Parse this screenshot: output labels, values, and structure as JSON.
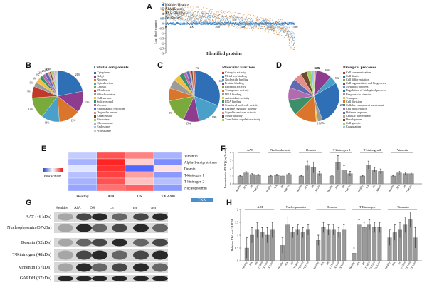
{
  "panels": {
    "A": "A",
    "B": "B",
    "C": "C",
    "D": "D",
    "E": "E",
    "F": "F",
    "G": "G",
    "H": "H"
  },
  "A": {
    "ylabel": "Log₂ (fold change)",
    "xlabel": "Identified proteins",
    "legend": [
      {
        "text": "Healthy/Healthy",
        "color": "#1f6fbf"
      },
      {
        "text": "AIA/Healthy",
        "color": "#e2852e"
      },
      {
        "text": "TXR/Healthy",
        "color": "#7f7f7f"
      },
      {
        "text": "DS/Healthy",
        "color": "#6bb0d8"
      }
    ],
    "yticks": [
      "2",
      "1.5",
      "1",
      "0.5",
      "0",
      "-0.5",
      "-1",
      "-1.5",
      "-2",
      "-2.5",
      "-3"
    ],
    "xticks": [
      "0",
      "100",
      "200",
      "300",
      "400",
      "500"
    ]
  },
  "B": {
    "title": "Cellular components",
    "items": [
      "Cytoplasm",
      "Golgi",
      "Nucleus",
      "Cytoskeleton",
      "Cytosol",
      "Membrane",
      "Mitochondrion",
      "Cell surface",
      "Spliceosomal",
      "Vacuole",
      "Endoplasmic reticulum",
      "Organelle lumen",
      "Extracellular",
      "Ribosome",
      "Chromosome",
      "Endosome",
      "Proteasome"
    ],
    "pcts": [
      "21%",
      "13%",
      "13%",
      "11%",
      "13%",
      "7%",
      "3%",
      "3%",
      "2%",
      "2%",
      "2%",
      "1%",
      "1%",
      "1%"
    ]
  },
  "C": {
    "title": "Molecular functions",
    "items": [
      "Catalytic activity",
      "Metal ion binding",
      "Nucleotide binding",
      "Protein binding",
      "Receptor activity",
      "Transporter activity",
      "DNA binding",
      "Antioxidant activity",
      "RNA binding",
      "Structural molecule activity",
      "Enzyme regulator activity",
      "Signal transducer activity",
      "Motor activity",
      "Translation regulator activity"
    ],
    "pcts": [
      "1%",
      "16%",
      "10%",
      "15%",
      "8%"
    ]
  },
  "D": {
    "title": "Biological processes",
    "items": [
      "Cell communication",
      "Cell death",
      "Cell differentiation",
      "Cell organization and biogenesis",
      "Metabolic process",
      "Regulation of biological process",
      "Response to stimulus",
      "Transport",
      "Cell division",
      "Cellular component movement",
      "Cell proliferation",
      "Defense response",
      "Cellular homeostasis",
      "Development",
      "Cell growth",
      "Coagulation"
    ],
    "pcts": [
      "0.4%",
      "0.1%",
      "1%",
      "10%",
      "5%",
      "28%",
      "3%",
      "1%"
    ]
  },
  "E": {
    "columns": [
      "Healthy",
      "AIA",
      "DS",
      "TXR200"
    ],
    "rows": [
      "Vimentin",
      "Alpha-1-antiproteinase",
      "Desmin",
      "T-kininogen 1",
      "T-kininogen 2",
      "Nucleophosmin"
    ],
    "key_label": "Row Z-Score",
    "values": [
      [
        -0.4,
        1.1,
        0.8,
        -0.6
      ],
      [
        -0.6,
        1.4,
        0.3,
        -0.9
      ],
      [
        -0.2,
        1.3,
        -1.2,
        0.2
      ],
      [
        -0.5,
        1.2,
        0.6,
        -0.8
      ],
      [
        -0.6,
        1.1,
        0.4,
        -0.5
      ],
      [
        -0.7,
        0.9,
        1.0,
        -0.8
      ]
    ]
  },
  "F": {
    "ylabel": "Expression in iTRAQ (log2 ratio)",
    "groups": [
      "AAT",
      "Nucleophosmin",
      "Desmin",
      "T-kininogen 1",
      "T-kininogen 2",
      "Vimentin"
    ],
    "bar_labels": [
      "Healthy",
      "AIA",
      "DS",
      "TXR200"
    ],
    "yticks": [
      "0",
      "1",
      "2",
      "3",
      "4"
    ],
    "ylim": [
      0,
      4
    ],
    "values": [
      [
        1.0,
        1.4,
        1.2,
        1.1
      ],
      [
        1.0,
        1.1,
        1.0,
        1.2
      ],
      [
        1.0,
        2.3,
        2.1,
        1.3
      ],
      [
        1.0,
        2.7,
        1.8,
        1.3
      ],
      [
        1.0,
        2.4,
        1.8,
        1.6
      ],
      [
        1.0,
        1.4,
        1.3,
        1.3
      ]
    ],
    "errors": [
      [
        0.05,
        0.15,
        0.1,
        0.1
      ],
      [
        0.05,
        0.1,
        0.1,
        0.1
      ],
      [
        0.05,
        0.6,
        0.7,
        0.3
      ],
      [
        0.05,
        0.9,
        0.5,
        0.3
      ],
      [
        0.05,
        0.5,
        0.3,
        0.3
      ],
      [
        0.05,
        0.2,
        0.2,
        0.2
      ]
    ]
  },
  "G": {
    "lanes": [
      "Healthy",
      "AIA",
      "DS",
      "50",
      "100",
      "200"
    ],
    "txr_label": "TXR",
    "proteins": [
      "AAT (46 kDa)",
      "Nucleophosmin (37kDa)",
      "Desmin (52kDa)",
      "T-Kininogen (48kDa)",
      "Vimentin (57kDa)",
      "GAPDH (37kDa)"
    ]
  },
  "H": {
    "ylabel": "Relative IDV wrt GAPDH",
    "groups": [
      "AAT",
      "Nucleophosmin",
      "Desmin",
      "T-Kininogen",
      "Vimentin"
    ],
    "bar_labels": [
      "Healthy",
      "AIA",
      "DS",
      "TXR50",
      "TXR100",
      "TXR200"
    ],
    "yticks": [
      "0",
      "0.5",
      "1",
      "1.5",
      "2"
    ],
    "ylim": [
      0,
      2
    ],
    "values": [
      [
        0.5,
        1.0,
        1.2,
        1.1,
        1.0,
        1.2
      ],
      [
        0.6,
        1.4,
        1.1,
        1.2,
        1.1,
        1.2
      ],
      [
        0.8,
        1.3,
        1.2,
        1.2,
        1.1,
        1.2
      ],
      [
        0.3,
        1.4,
        1.3,
        1.4,
        1.3,
        1.3
      ],
      [
        0.9,
        1.1,
        1.2,
        1.4,
        1.6,
        0.9
      ]
    ],
    "errors": [
      [
        0.4,
        0.3,
        0.3,
        0.2,
        0.3,
        0.3
      ],
      [
        0.3,
        0.3,
        0.2,
        0.2,
        0.2,
        0.2
      ],
      [
        0.2,
        0.2,
        0.2,
        0.2,
        0.2,
        0.2
      ],
      [
        0.2,
        0.2,
        0.2,
        0.2,
        0.2,
        0.2
      ],
      [
        0.3,
        0.3,
        0.3,
        0.3,
        0.3,
        0.4
      ]
    ]
  }
}
